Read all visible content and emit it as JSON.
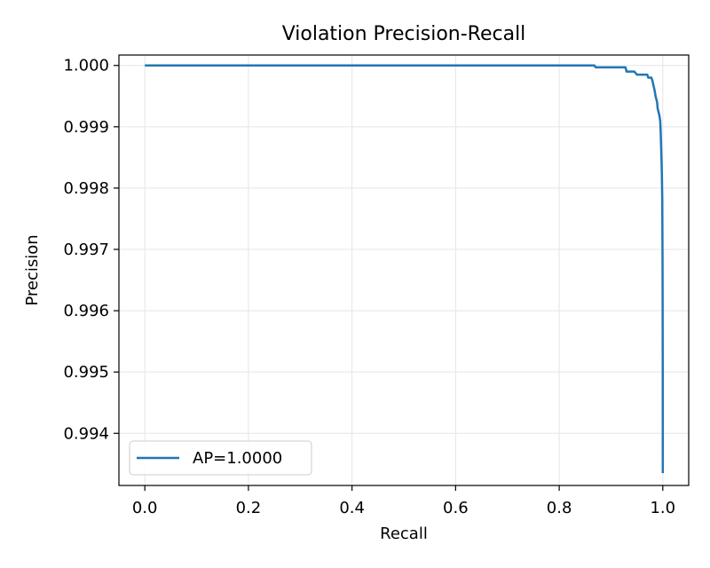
{
  "chart_data": {
    "type": "line",
    "title": "Violation Precision-Recall",
    "xlabel": "Recall",
    "ylabel": "Precision",
    "xlim": [
      -0.05,
      1.05
    ],
    "ylim": [
      0.99315,
      1.00017
    ],
    "xticks": [
      0.0,
      0.2,
      0.4,
      0.6,
      0.8,
      1.0
    ],
    "xtick_labels": [
      "0.0",
      "0.2",
      "0.4",
      "0.6",
      "0.8",
      "1.0"
    ],
    "yticks": [
      0.994,
      0.995,
      0.996,
      0.997,
      0.998,
      0.999,
      1.0
    ],
    "ytick_labels": [
      "0.994",
      "0.995",
      "0.996",
      "0.997",
      "0.998",
      "0.999",
      "1.000"
    ],
    "grid": true,
    "legend_position": "lower-left",
    "series": [
      {
        "name": "AP=1.0000",
        "color": "#1f77b4",
        "x": [
          0.0,
          0.3,
          0.6,
          0.868,
          0.87,
          0.928,
          0.93,
          0.945,
          0.95,
          0.97,
          0.972,
          0.978,
          0.98,
          0.984,
          0.986,
          0.989,
          0.99,
          0.993,
          0.995,
          0.996,
          0.997,
          0.998,
          0.999,
          0.9995,
          0.9997,
          0.9999,
          1.0
        ],
        "y": [
          1.0,
          1.0,
          1.0,
          1.0,
          0.99997,
          0.99997,
          0.9999,
          0.9999,
          0.99985,
          0.99985,
          0.9998,
          0.9998,
          0.99975,
          0.9996,
          0.9995,
          0.9994,
          0.9993,
          0.9992,
          0.9991,
          0.9989,
          0.9986,
          0.9983,
          0.9978,
          0.9968,
          0.996,
          0.995,
          0.99335
        ]
      }
    ]
  }
}
